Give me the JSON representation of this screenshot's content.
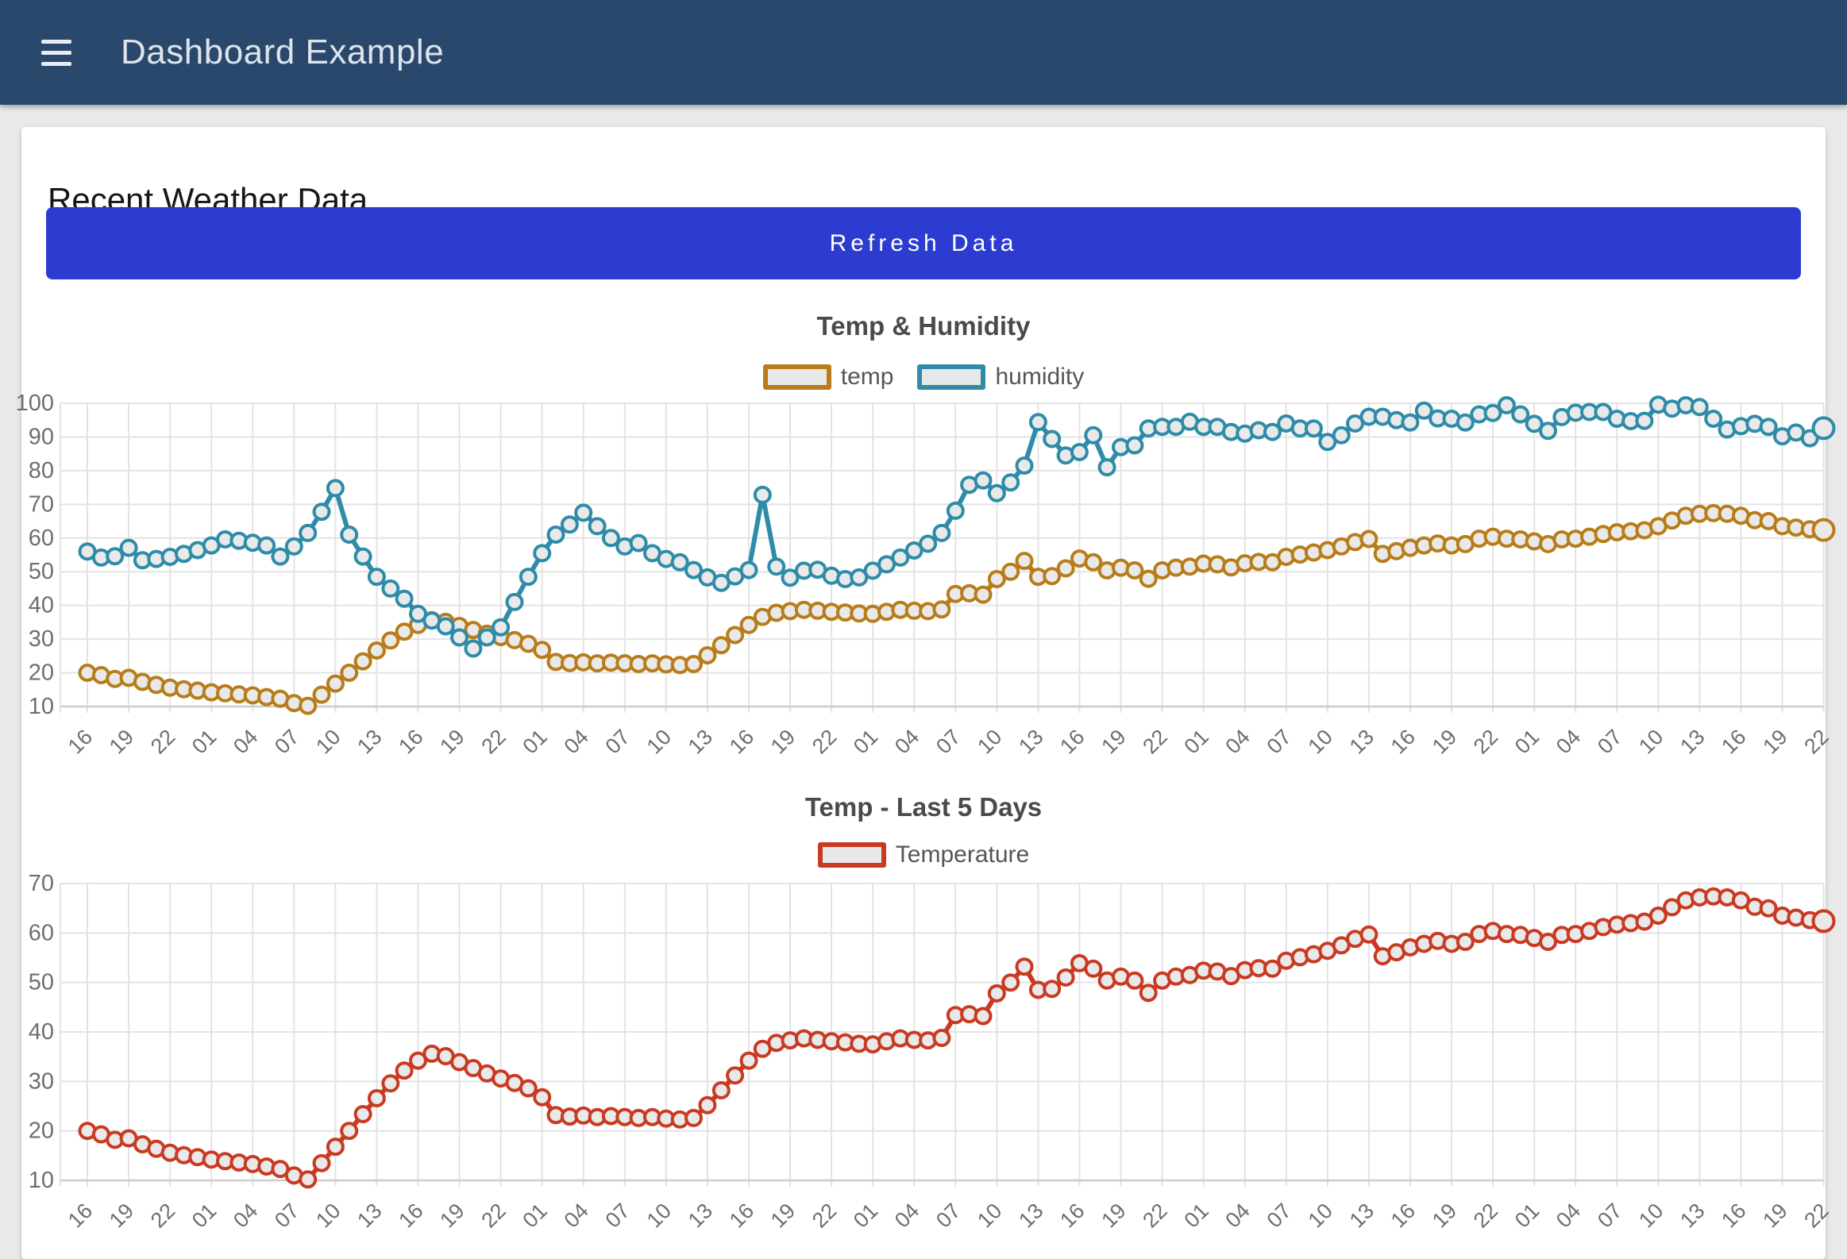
{
  "header": {
    "title": "Dashboard Example",
    "menu_icon": "hamburger-icon"
  },
  "page": {
    "card_title": "Recent Weather Data",
    "refresh_button_label": "Refresh Data"
  },
  "colors": {
    "header_bg": "#29486b",
    "button_bg": "#2c3cd1",
    "card_bg": "#ffffff",
    "page_bg": "#e9e9e9",
    "temp": "#b87d1a",
    "humidity": "#2e8ca9",
    "temperature": "#c93a22",
    "grid": "#e3e3e3",
    "axis_text": "#6e6e6e",
    "marker_fill": "#e9e9e9"
  },
  "charts": [
    {
      "title": "Temp & Humidity",
      "legend": [
        {
          "label": "temp",
          "color": "#b87d1a"
        },
        {
          "label": "humidity",
          "color": "#2e8ca9"
        }
      ],
      "chart_data": {
        "type": "line",
        "title": "Temp & Humidity",
        "xlabel": "",
        "ylabel": "",
        "ylim": [
          10,
          100
        ],
        "yticks": [
          10,
          20,
          30,
          40,
          50,
          60,
          70,
          80,
          90,
          100
        ],
        "grid": true,
        "legend_position": "top",
        "points_per_xlabel": 3,
        "xlabel_rotation": -45,
        "x_labels": [
          "16",
          "19",
          "22",
          "01",
          "04",
          "07",
          "10",
          "13",
          "16",
          "19",
          "22",
          "01",
          "04",
          "07",
          "10",
          "13",
          "16",
          "19",
          "22",
          "01",
          "04",
          "07",
          "10",
          "13",
          "16",
          "19",
          "22",
          "01",
          "04",
          "07",
          "10",
          "13",
          "16",
          "19",
          "22",
          "01",
          "04",
          "07",
          "10",
          "13",
          "16",
          "19",
          "22"
        ],
        "series": [
          {
            "name": "temp",
            "color": "#b87d1a",
            "values": [
              20,
              19.3,
              18.2,
              18.5,
              17.3,
              16.4,
              15.6,
              15.1,
              14.7,
              14.2,
              13.9,
              13.6,
              13.3,
              12.8,
              12.3,
              11,
              10.2,
              13.5,
              16.8,
              20,
              23.4,
              26.6,
              29.6,
              32.2,
              34.2,
              35.6,
              35.1,
              33.9,
              32.7,
              31.6,
              30.6,
              29.7,
              28.6,
              26.8,
              23.2,
              22.9,
              23.1,
              22.8,
              23,
              22.8,
              22.6,
              22.8,
              22.5,
              22.3,
              22.6,
              25.2,
              28.2,
              31.2,
              34.2,
              36.6,
              37.8,
              38.3,
              38.7,
              38.4,
              38.1,
              37.9,
              37.6,
              37.5,
              38.1,
              38.7,
              38.4,
              38.3,
              38.8,
              43.4,
              43.6,
              43.2,
              47.8,
              50,
              53.2,
              48.5,
              48.7,
              51,
              53.9,
              52.8,
              50.4,
              51.2,
              50.4,
              47.9,
              50.4,
              51.2,
              51.5,
              52.4,
              52.2,
              51.3,
              52.5,
              52.9,
              52.8,
              54.4,
              55.1,
              55.7,
              56.4,
              57.5,
              58.8,
              59.7,
              55.3,
              56.1,
              57.1,
              57.8,
              58.4,
              57.8,
              58.2,
              59.8,
              60.4,
              59.8,
              59.6,
              59,
              58.2,
              59.6,
              59.8,
              60.4,
              61.2,
              61.7,
              62,
              62.3,
              63.5,
              65.2,
              66.6,
              67.2,
              67.4,
              67.2,
              66.6,
              65.3,
              65,
              63.5,
              63.1,
              62.6,
              62.4
            ]
          },
          {
            "name": "humidity",
            "color": "#2e8ca9",
            "values": [
              56,
              54.2,
              54.6,
              57.1,
              53.4,
              53.8,
              54.4,
              55.3,
              56.4,
              57.8,
              59.6,
              59.2,
              58.6,
              57.8,
              54.5,
              57.5,
              61.5,
              67.8,
              74.8,
              61,
              54.5,
              48.5,
              45,
              42,
              37.5,
              35.5,
              33.8,
              30.5,
              27.2,
              30.5,
              33.5,
              41,
              48.5,
              55.5,
              61,
              64,
              67.5,
              63.5,
              60,
              57.5,
              58.5,
              55.5,
              53.8,
              52.8,
              50.5,
              48.3,
              46.7,
              48.6,
              50.5,
              72.8,
              51.5,
              48.2,
              50.3,
              50.6,
              48.8,
              47.8,
              48.3,
              50.3,
              52.2,
              54.2,
              56.3,
              58.3,
              61.5,
              68.1,
              75.8,
              77.1,
              73.3,
              76.5,
              81.5,
              94.4,
              89.4,
              84.5,
              85.5,
              90.5,
              81,
              87,
              87.5,
              92.5,
              93,
              93,
              94.5,
              93,
              93,
              91.5,
              91,
              92,
              91.5,
              94,
              92.5,
              92.5,
              88.5,
              90.5,
              94,
              96,
              96,
              95,
              94.3,
              97.8,
              95.5,
              95.4,
              94.3,
              96.7,
              97.1,
              99.4,
              96.7,
              93.9,
              91.8,
              95.9,
              97.2,
              97.4,
              97.4,
              95.4,
              94.7,
              94.8,
              99.6,
              98.4,
              99.4,
              98.9,
              95.4,
              92.2,
              93.2,
              93.9,
              93,
              90.2,
              91.3,
              89.6,
              92.6
            ]
          }
        ]
      }
    },
    {
      "title": "Temp - Last 5 Days",
      "legend": [
        {
          "label": "Temperature",
          "color": "#c93a22"
        }
      ],
      "chart_data": {
        "type": "line",
        "title": "Temp - Last 5 Days",
        "xlabel": "",
        "ylabel": "",
        "ylim": [
          10,
          70
        ],
        "yticks": [
          10,
          20,
          30,
          40,
          50,
          60,
          70
        ],
        "grid": true,
        "legend_position": "top",
        "points_per_xlabel": 3,
        "xlabel_rotation": -45,
        "x_labels": [
          "16",
          "19",
          "22",
          "01",
          "04",
          "07",
          "10",
          "13",
          "16",
          "19",
          "22",
          "01",
          "04",
          "07",
          "10",
          "13",
          "16",
          "19",
          "22",
          "01",
          "04",
          "07",
          "10",
          "13",
          "16",
          "19",
          "22",
          "01",
          "04",
          "07",
          "10",
          "13",
          "16",
          "19",
          "22",
          "01",
          "04",
          "07",
          "10",
          "13",
          "16",
          "19",
          "22"
        ],
        "series": [
          {
            "name": "Temperature",
            "color": "#c93a22",
            "values": [
              20,
              19.3,
              18.2,
              18.5,
              17.3,
              16.4,
              15.6,
              15.1,
              14.7,
              14.2,
              13.9,
              13.6,
              13.3,
              12.8,
              12.3,
              11,
              10.2,
              13.5,
              16.8,
              20,
              23.4,
              26.6,
              29.6,
              32.2,
              34.2,
              35.6,
              35.1,
              33.9,
              32.7,
              31.6,
              30.6,
              29.7,
              28.6,
              26.8,
              23.2,
              22.9,
              23.1,
              22.8,
              23,
              22.8,
              22.6,
              22.8,
              22.5,
              22.3,
              22.6,
              25.2,
              28.2,
              31.2,
              34.2,
              36.6,
              37.8,
              38.3,
              38.7,
              38.4,
              38.1,
              37.9,
              37.6,
              37.5,
              38.1,
              38.7,
              38.4,
              38.3,
              38.8,
              43.4,
              43.6,
              43.2,
              47.8,
              50,
              53.2,
              48.5,
              48.7,
              51,
              53.9,
              52.8,
              50.4,
              51.2,
              50.4,
              47.9,
              50.4,
              51.2,
              51.5,
              52.4,
              52.2,
              51.3,
              52.5,
              52.9,
              52.8,
              54.4,
              55.1,
              55.7,
              56.4,
              57.5,
              58.8,
              59.7,
              55.3,
              56.1,
              57.1,
              57.8,
              58.4,
              57.8,
              58.2,
              59.8,
              60.4,
              59.8,
              59.6,
              59,
              58.2,
              59.6,
              59.8,
              60.4,
              61.2,
              61.7,
              62,
              62.3,
              63.5,
              65.2,
              66.6,
              67.2,
              67.4,
              67.2,
              66.6,
              65.3,
              65,
              63.5,
              63.1,
              62.6,
              62.4
            ]
          }
        ]
      }
    }
  ]
}
